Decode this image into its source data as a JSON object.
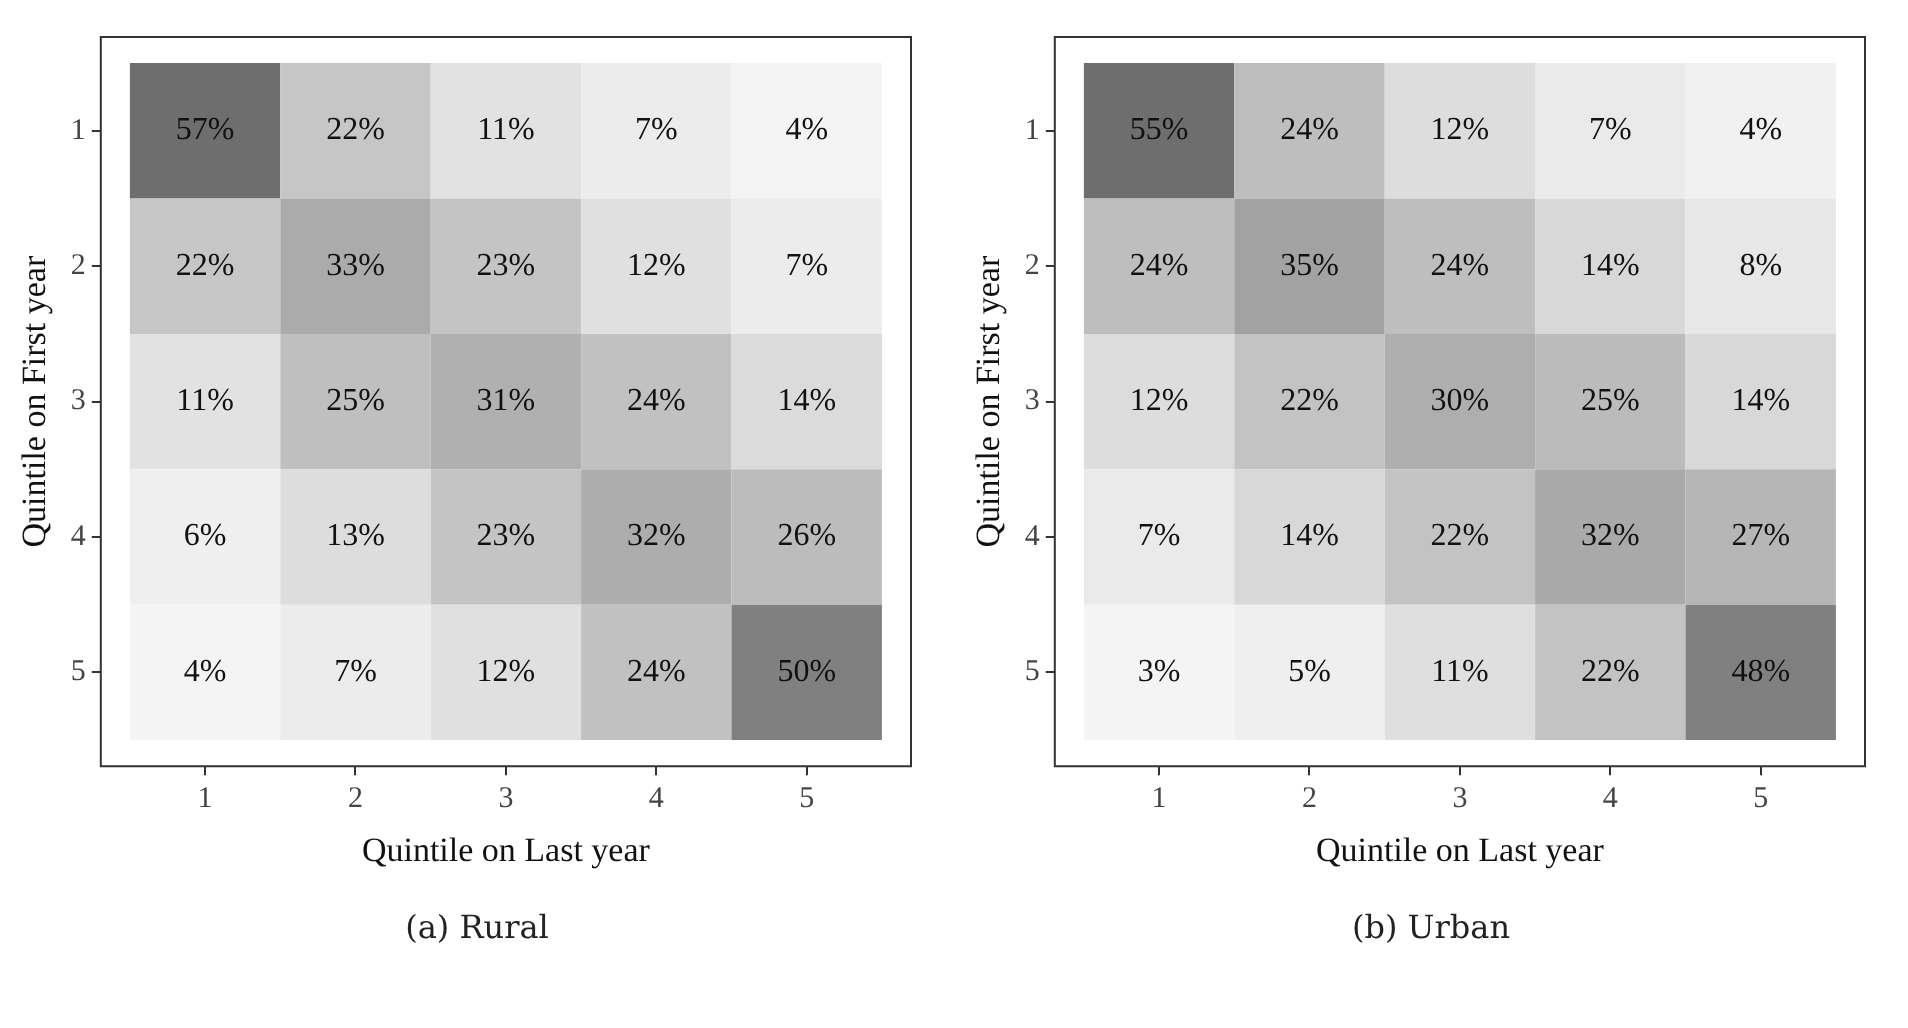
{
  "chart_data": [
    {
      "type": "heatmap",
      "xlabel": "Quintile on Last year",
      "ylabel": "Quintile on First year",
      "categories": [
        "1",
        "2",
        "3",
        "4",
        "5"
      ],
      "y_categories": [
        "1",
        "2",
        "3",
        "4",
        "5"
      ],
      "cells": [
        [
          57,
          22,
          11,
          7,
          4
        ],
        [
          22,
          33,
          23,
          12,
          7
        ],
        [
          11,
          25,
          31,
          24,
          14
        ],
        [
          6,
          13,
          23,
          32,
          26
        ],
        [
          4,
          7,
          12,
          24,
          50
        ]
      ],
      "cell_labels": [
        [
          "57%",
          "22%",
          "11%",
          "7%",
          "4%"
        ],
        [
          "22%",
          "33%",
          "23%",
          "12%",
          "7%"
        ],
        [
          "11%",
          "25%",
          "31%",
          "24%",
          "14%"
        ],
        [
          "6%",
          "13%",
          "23%",
          "32%",
          "26%"
        ],
        [
          "4%",
          "7%",
          "12%",
          "24%",
          "50%"
        ]
      ],
      "annotations": [
        "(a) Rural"
      ]
    },
    {
      "type": "heatmap",
      "xlabel": "Quintile on Last year",
      "ylabel": "Quintile on First year",
      "categories": [
        "1",
        "2",
        "3",
        "4",
        "5"
      ],
      "y_categories": [
        "1",
        "2",
        "3",
        "4",
        "5"
      ],
      "cells": [
        [
          55,
          24,
          12,
          7,
          4
        ],
        [
          24,
          35,
          24,
          14,
          8
        ],
        [
          12,
          22,
          30,
          25,
          14
        ],
        [
          7,
          14,
          22,
          32,
          27
        ],
        [
          3,
          5,
          11,
          22,
          48
        ]
      ],
      "cell_labels": [
        [
          "55%",
          "24%",
          "12%",
          "7%",
          "4%"
        ],
        [
          "24%",
          "35%",
          "24%",
          "14%",
          "8%"
        ],
        [
          "12%",
          "22%",
          "30%",
          "25%",
          "14%"
        ],
        [
          "7%",
          "14%",
          "22%",
          "32%",
          "27%"
        ],
        [
          "3%",
          "5%",
          "11%",
          "22%",
          "48%"
        ]
      ],
      "annotations": [
        "(b) Urban"
      ]
    }
  ]
}
